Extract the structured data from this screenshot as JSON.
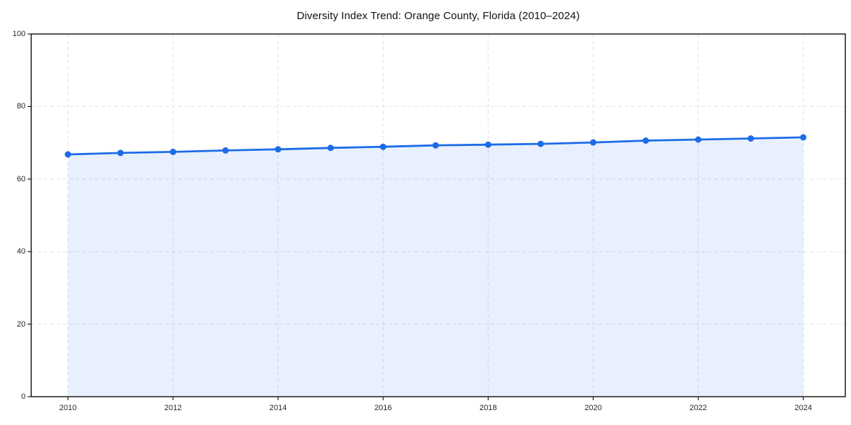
{
  "chart_data": {
    "type": "line",
    "title": "Diversity Index Trend: Orange County, Florida (2010–2024)",
    "series_name": "Diversity Index",
    "x": [
      2010,
      2011,
      2012,
      2013,
      2014,
      2015,
      2016,
      2017,
      2018,
      2019,
      2020,
      2021,
      2022,
      2023,
      2024
    ],
    "values": [
      66.8,
      67.2,
      67.5,
      67.9,
      68.2,
      68.6,
      68.9,
      69.3,
      69.5,
      69.7,
      70.1,
      70.6,
      70.9,
      71.2,
      71.5
    ],
    "xlabel": "",
    "ylabel": "",
    "xlim": [
      2009.3,
      2024.8
    ],
    "ylim": [
      0,
      100
    ],
    "x_ticks": [
      2010,
      2012,
      2014,
      2016,
      2018,
      2020,
      2022,
      2024
    ],
    "x_tick_labels": [
      "2010",
      "2012",
      "2014",
      "2016",
      "2018",
      "2020",
      "2022",
      "2024"
    ],
    "y_ticks": [
      0,
      20,
      40,
      60,
      80,
      100
    ],
    "y_tick_labels": [
      "0",
      "20",
      "40",
      "60",
      "80",
      "100"
    ],
    "grid": "dashed-on",
    "legend": "none",
    "area_fill": true,
    "marker": "circle",
    "colors": {
      "line": "#1c6ce8",
      "marker": "#1c6ce8",
      "area": "rgba(28, 108, 232, 0.10)",
      "gridline": "#e0e0e0",
      "spine": "#1a1a1a",
      "text": "#262626",
      "background": "#ffffff"
    }
  }
}
